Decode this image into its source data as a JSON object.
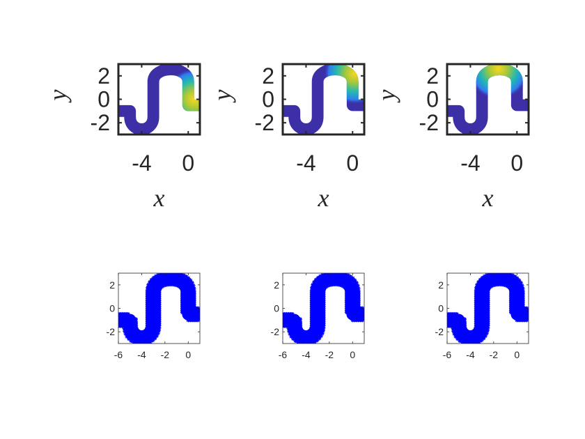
{
  "chart_data": [
    {
      "type": "heatmap",
      "panel": "top-left",
      "xlabel": "x",
      "ylabel": "y",
      "xlim": [
        -6.0,
        1.0
      ],
      "ylim": [
        -3.0,
        3.0
      ],
      "xticks": [
        -4,
        0
      ],
      "yticks": [
        -2,
        0,
        2
      ],
      "xtick_labels": [
        "-4",
        "0"
      ],
      "ytick_labels": [
        "-2",
        "0",
        "2"
      ],
      "domain_color": "#3d2fa6",
      "hotspot": {
        "x": 0.5,
        "y": 0.0,
        "peak": "#f9d621",
        "colormap": "parula"
      }
    },
    {
      "type": "heatmap",
      "panel": "top-middle",
      "xlabel": "x",
      "ylabel": "y",
      "xlim": [
        -6.0,
        1.0
      ],
      "ylim": [
        -3.0,
        3.0
      ],
      "xticks": [
        -4,
        0
      ],
      "yticks": [
        -2,
        0,
        2
      ],
      "xtick_labels": [
        "-4",
        "0"
      ],
      "ytick_labels": [
        "-2",
        "0",
        "2"
      ],
      "domain_color": "#3d2fa6",
      "hotspot": {
        "x": 0.2,
        "y": 2.2,
        "peak": "#f9d621",
        "colormap": "parula"
      }
    },
    {
      "type": "heatmap",
      "panel": "top-right",
      "xlabel": "x",
      "ylabel": "y",
      "xlim": [
        -6.0,
        1.0
      ],
      "ylim": [
        -3.0,
        3.0
      ],
      "xticks": [
        -4,
        0
      ],
      "yticks": [
        -2,
        0,
        2
      ],
      "xtick_labels": [
        "-4",
        "0"
      ],
      "ytick_labels": [
        "-2",
        "0",
        "2"
      ],
      "domain_color": "#3d2fa6",
      "hotspot": {
        "x": -1.6,
        "y": 2.6,
        "peak": "#f9d621",
        "colormap": "parula"
      }
    },
    {
      "type": "scatter",
      "panel": "bottom-left",
      "xlabel": "",
      "ylabel": "",
      "xlim": [
        -6.0,
        1.0
      ],
      "ylim": [
        -3.0,
        3.0
      ],
      "xticks": [
        -6,
        -4,
        -2,
        0
      ],
      "yticks": [
        -2,
        0,
        2
      ],
      "xtick_labels": [
        "-6",
        "-4",
        "-2",
        "0"
      ],
      "ytick_labels": [
        "-2",
        "0",
        "2"
      ],
      "marker_color": "#0000ff"
    },
    {
      "type": "scatter",
      "panel": "bottom-middle",
      "xlabel": "",
      "ylabel": "",
      "xlim": [
        -6.0,
        1.0
      ],
      "ylim": [
        -3.0,
        3.0
      ],
      "xticks": [
        -6,
        -4,
        -2,
        0
      ],
      "yticks": [
        -2,
        0,
        2
      ],
      "xtick_labels": [
        "-6",
        "-4",
        "-2",
        "0"
      ],
      "ytick_labels": [
        "-2",
        "0",
        "2"
      ],
      "marker_color": "#0000ff"
    },
    {
      "type": "scatter",
      "panel": "bottom-right",
      "xlabel": "",
      "ylabel": "",
      "xlim": [
        -6.0,
        1.0
      ],
      "ylim": [
        -3.0,
        3.0
      ],
      "xticks": [
        -6,
        -4,
        -2,
        0
      ],
      "yticks": [
        -2,
        0,
        2
      ],
      "xtick_labels": [
        "-6",
        "-4",
        "-2",
        "0"
      ],
      "ytick_labels": [
        "-2",
        "0",
        "2"
      ],
      "marker_color": "#0000ff"
    }
  ],
  "domain_shape": {
    "description": "S-shaped channel (two stacked semicircular arcs with straight legs)",
    "channel_half_width": 0.5,
    "centerline": [
      [
        -6.0,
        -1.0
      ],
      [
        -5.0,
        -1.0
      ],
      [
        -5.0,
        -1.8
      ],
      [
        -4.0,
        -2.5
      ],
      [
        -3.2,
        -1.5
      ],
      [
        -3.0,
        0.0
      ],
      [
        -3.0,
        1.5
      ],
      [
        -1.5,
        2.5
      ],
      [
        0.0,
        1.5
      ],
      [
        0.0,
        0.0
      ],
      [
        0.5,
        -1.0
      ]
    ]
  }
}
